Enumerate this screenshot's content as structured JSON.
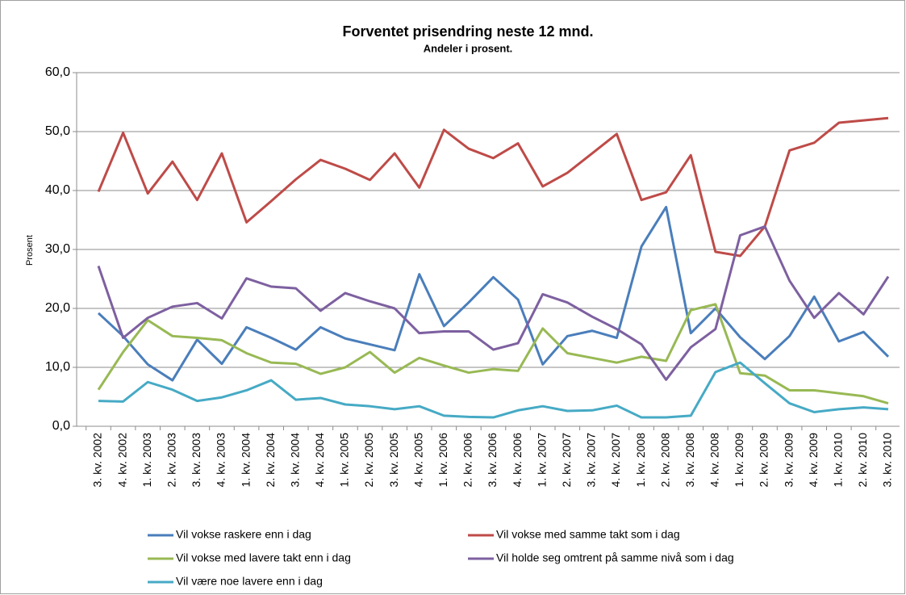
{
  "chart_data": {
    "type": "line",
    "title": "Forventet prisendring neste 12 mnd.",
    "subtitle": "Andeler i prosent.",
    "y_label": "Prosent",
    "categories": [
      "3. kv. 2002",
      "4. kv. 2002",
      "1. kv. 2003",
      "2. kv. 2003",
      "3. kv. 2003",
      "4. kv. 2003",
      "1. kv. 2004",
      "2. kv. 2004",
      "3. kv. 2004",
      "4. kv. 2004",
      "1. kv. 2005",
      "2. kv. 2005",
      "3. kv. 2005",
      "4. kv. 2005",
      "1. kv. 2006",
      "2. kv. 2006",
      "3. kv. 2006",
      "4. kv. 2006",
      "1. kv. 2007",
      "2. kv. 2007",
      "3. kv. 2007",
      "4. kv. 2007",
      "1. kv. 2008",
      "2. kv. 2008",
      "3. kv. 2008",
      "4. kv. 2008",
      "1. kv. 2009",
      "2. kv. 2009",
      "3. kv. 2009",
      "4. kv. 2009",
      "1. kv. 2010",
      "2. kv. 2010",
      "3. kv. 2010"
    ],
    "series": [
      {
        "name": "Vil vokse raskere enn i dag",
        "color": "#4a7ebb",
        "values": [
          19.2,
          15.3,
          10.5,
          7.8,
          14.7,
          10.6,
          16.8,
          15.0,
          13.0,
          16.8,
          14.9,
          13.9,
          12.9,
          25.8,
          17.0,
          21.0,
          25.3,
          21.5,
          10.5,
          15.3,
          16.2,
          15.0,
          30.5,
          37.2,
          15.8,
          20.0,
          15.1,
          11.4,
          15.3,
          22.0,
          14.4,
          16.0,
          11.8
        ]
      },
      {
        "name": "Vil vokse med samme takt som i dag",
        "color": "#be4b48",
        "values": [
          39.8,
          49.8,
          39.5,
          44.9,
          38.4,
          46.3,
          34.6,
          38.2,
          41.9,
          45.2,
          43.7,
          41.8,
          46.3,
          40.5,
          50.3,
          47.1,
          45.5,
          48.0,
          40.7,
          43.0,
          46.3,
          49.6,
          38.4,
          39.7,
          46.0,
          29.6,
          28.9,
          33.9,
          46.8,
          48.1,
          51.5,
          51.9,
          52.3
        ]
      },
      {
        "name": "Vil vokse med lavere takt enn i dag",
        "color": "#98b954",
        "values": [
          6.2,
          12.6,
          18.0,
          15.3,
          15.0,
          14.6,
          12.4,
          10.8,
          10.6,
          8.9,
          10.0,
          12.6,
          9.1,
          11.6,
          10.3,
          9.1,
          9.7,
          9.4,
          16.6,
          12.4,
          11.6,
          10.8,
          11.8,
          11.1,
          19.7,
          20.7,
          9.0,
          8.6,
          6.1,
          6.1,
          5.6,
          5.1,
          3.9
        ]
      },
      {
        "name": "Vil holde seg omtrent på samme nivå som i dag",
        "color": "#7d60a0",
        "values": [
          27.2,
          15.0,
          18.4,
          20.3,
          20.9,
          18.3,
          25.1,
          23.7,
          23.4,
          19.6,
          22.6,
          21.2,
          20.0,
          15.8,
          16.1,
          16.1,
          13.0,
          14.1,
          22.4,
          21.0,
          18.6,
          16.5,
          13.9,
          7.9,
          13.4,
          16.5,
          32.4,
          33.9,
          24.7,
          18.4,
          22.6,
          19.0,
          25.4
        ]
      },
      {
        "name": "Vil være noe lavere enn i dag",
        "color": "#46aac5",
        "values": [
          4.3,
          4.2,
          7.5,
          6.2,
          4.3,
          4.9,
          6.1,
          7.8,
          4.5,
          4.8,
          3.7,
          3.4,
          2.9,
          3.4,
          1.8,
          1.6,
          1.5,
          2.7,
          3.4,
          2.6,
          2.7,
          3.5,
          1.5,
          1.5,
          1.8,
          9.2,
          10.8,
          7.3,
          3.9,
          2.4,
          2.9,
          3.2,
          2.9
        ]
      }
    ],
    "ylim": [
      0,
      60
    ],
    "yticks": [
      {
        "value": 0,
        "label": "0,0"
      },
      {
        "value": 10,
        "label": "10,0"
      },
      {
        "value": 20,
        "label": "20,0"
      },
      {
        "value": 30,
        "label": "30,0"
      },
      {
        "value": 40,
        "label": "40,0"
      },
      {
        "value": 50,
        "label": "50,0"
      },
      {
        "value": 60,
        "label": "60,0"
      }
    ],
    "grid": true
  }
}
